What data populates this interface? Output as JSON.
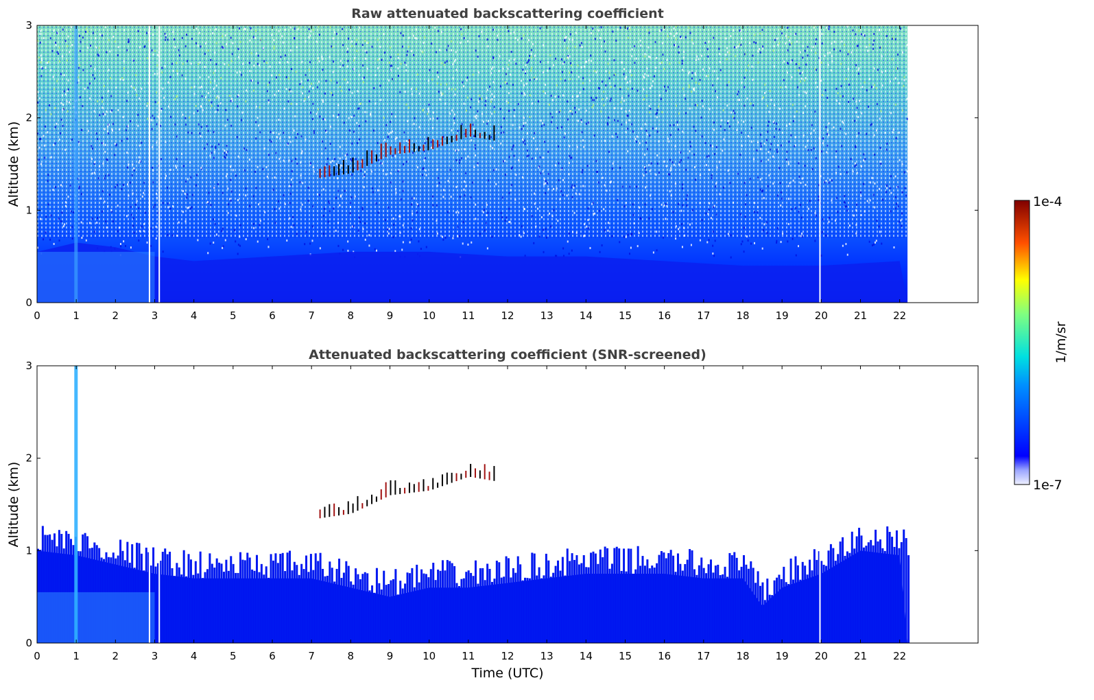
{
  "chart_data": [
    {
      "type": "heatmap",
      "title": "Raw attenuated backscattering coefficient",
      "xlabel": "",
      "ylabel": "Altitude (km)",
      "x_ticks": [
        "0",
        "1",
        "2",
        "3",
        "4",
        "5",
        "6",
        "7",
        "8",
        "9",
        "10",
        "11",
        "12",
        "13",
        "14",
        "15",
        "16",
        "17",
        "18",
        "19",
        "20",
        "21",
        "22"
      ],
      "y_ticks": [
        "0",
        "1",
        "2",
        "3"
      ],
      "xlim": [
        0,
        24
      ],
      "ylim": [
        0,
        3
      ],
      "data_extent_x": [
        0,
        22.2
      ],
      "layers": [
        {
          "name": "boundary layer",
          "top_km": [
            [
              0,
              0.55
            ],
            [
              1,
              0.65
            ],
            [
              2,
              0.6
            ],
            [
              3,
              0.5
            ],
            [
              4,
              0.45
            ],
            [
              6,
              0.5
            ],
            [
              8,
              0.55
            ],
            [
              10,
              0.55
            ],
            [
              12,
              0.5
            ],
            [
              14,
              0.5
            ],
            [
              16,
              0.45
            ],
            [
              18,
              0.4
            ],
            [
              20,
              0.4
            ],
            [
              22,
              0.45
            ]
          ]
        },
        {
          "name": "cloud band",
          "points_km": [
            [
              7.2,
              1.35
            ],
            [
              8,
              1.4
            ],
            [
              8.5,
              1.5
            ],
            [
              9,
              1.6
            ],
            [
              10,
              1.65
            ],
            [
              11,
              1.8
            ],
            [
              11.7,
              1.75
            ]
          ]
        }
      ],
      "gaps_utc": [
        2.85,
        3.1,
        19.95
      ]
    },
    {
      "type": "heatmap",
      "title": "Attenuated backscattering coefficient (SNR-screened)",
      "xlabel": "Time (UTC)",
      "ylabel": "Altitude (km)",
      "x_ticks": [
        "0",
        "1",
        "2",
        "3",
        "4",
        "5",
        "6",
        "7",
        "8",
        "9",
        "10",
        "11",
        "12",
        "13",
        "14",
        "15",
        "16",
        "17",
        "18",
        "19",
        "20",
        "21",
        "22"
      ],
      "y_ticks": [
        "0",
        "1",
        "2",
        "3"
      ],
      "xlim": [
        0,
        24
      ],
      "ylim": [
        0,
        3
      ],
      "data_extent_x": [
        0,
        22.2
      ],
      "layers": [
        {
          "name": "aerosol layer top",
          "top_km": [
            [
              0,
              1.15
            ],
            [
              1,
              1.1
            ],
            [
              2,
              1.0
            ],
            [
              3,
              0.9
            ],
            [
              4,
              0.85
            ],
            [
              6,
              0.85
            ],
            [
              7,
              0.85
            ],
            [
              8,
              0.75
            ],
            [
              9,
              0.65
            ],
            [
              10,
              0.75
            ],
            [
              11,
              0.75
            ],
            [
              12,
              0.8
            ],
            [
              13,
              0.85
            ],
            [
              14,
              0.9
            ],
            [
              15,
              0.9
            ],
            [
              16,
              0.9
            ],
            [
              17,
              0.85
            ],
            [
              18,
              0.85
            ],
            [
              18.5,
              0.55
            ],
            [
              19,
              0.75
            ],
            [
              20,
              0.9
            ],
            [
              21,
              1.15
            ],
            [
              22,
              1.1
            ]
          ]
        },
        {
          "name": "cloud band",
          "points_km": [
            [
              7.2,
              1.35
            ],
            [
              8,
              1.4
            ],
            [
              8.5,
              1.5
            ],
            [
              9,
              1.6
            ],
            [
              10,
              1.65
            ],
            [
              11,
              1.8
            ],
            [
              11.7,
              1.75
            ]
          ]
        }
      ],
      "gaps_utc": [
        2.85,
        3.1,
        19.95
      ]
    }
  ],
  "colorbar": {
    "label": "1/m/sr",
    "max_label": "1e-4",
    "min_label": "1e-7",
    "scale": "log",
    "colormap": "jet"
  }
}
